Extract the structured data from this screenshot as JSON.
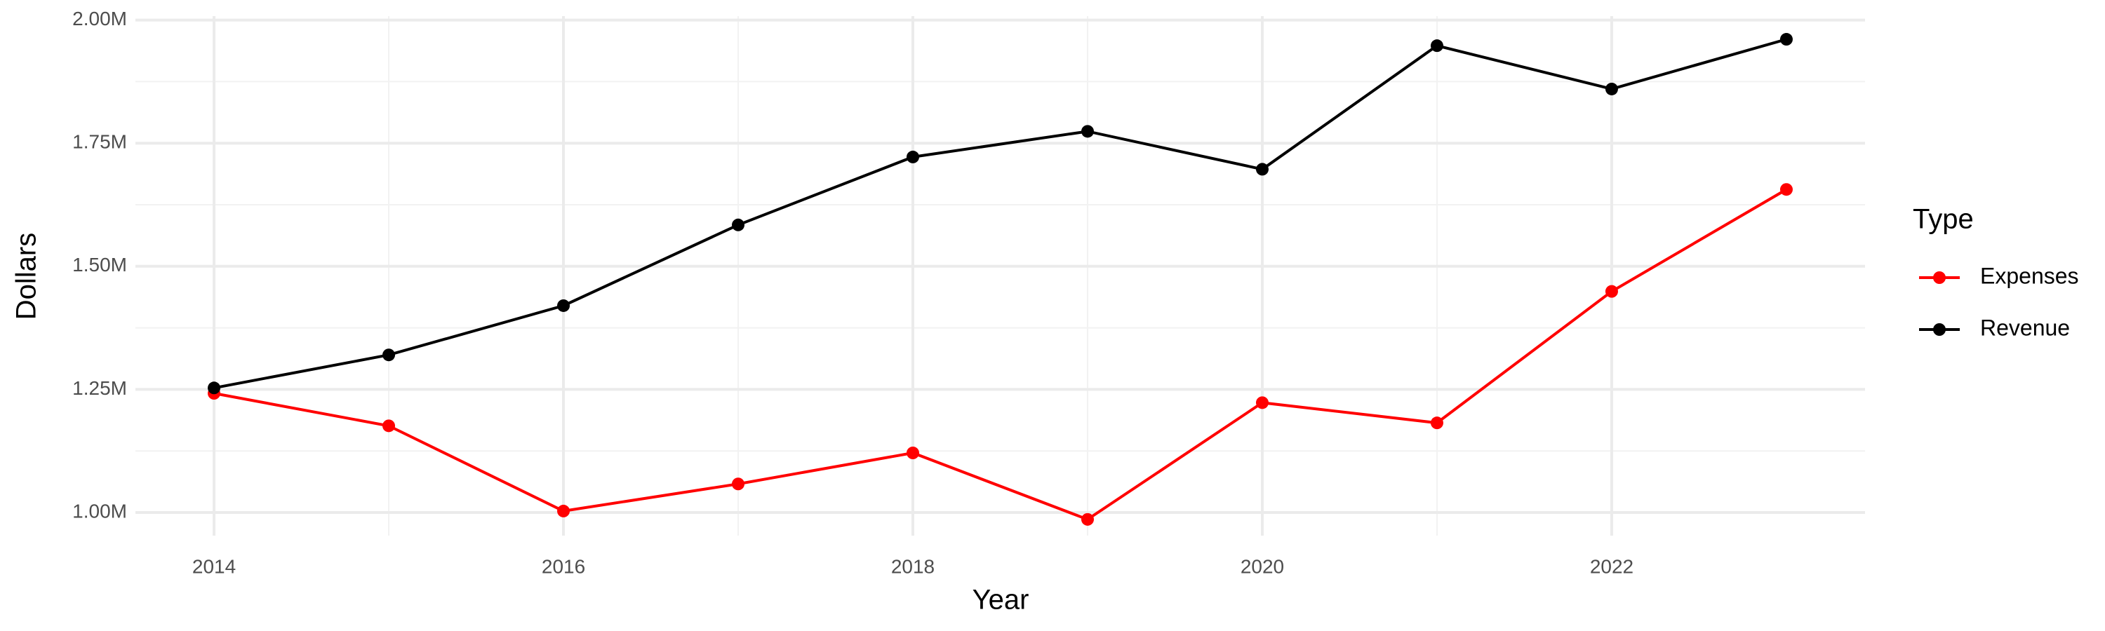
{
  "chart_data": {
    "type": "line",
    "x_label": "Year",
    "y_label": "Dollars",
    "legend_title": "Type",
    "x": [
      2014,
      2015,
      2016,
      2017,
      2018,
      2019,
      2020,
      2021,
      2022,
      2023
    ],
    "series": [
      {
        "name": "Expenses",
        "color": "#ff0000",
        "values": [
          1242000,
          1176000,
          1003000,
          1058000,
          1121000,
          986000,
          1223000,
          1182000,
          1449000,
          1656000
        ]
      },
      {
        "name": "Revenue",
        "color": "#000000",
        "values": [
          1253000,
          1320000,
          1420000,
          1584000,
          1722000,
          1774000,
          1697000,
          1948000,
          1860000,
          1961000
        ]
      }
    ],
    "xlim": [
      2013.55,
      2023.45
    ],
    "xticks": [
      2014,
      2016,
      2018,
      2020,
      2022
    ],
    "ylim": [
      953000,
      2008000
    ],
    "yticks": [
      {
        "value": 1000000,
        "label": "1.00M"
      },
      {
        "value": 1250000,
        "label": "1.25M"
      },
      {
        "value": 1500000,
        "label": "1.50M"
      },
      {
        "value": 1750000,
        "label": "1.75M"
      },
      {
        "value": 2000000,
        "label": "2.00M"
      }
    ],
    "grid": true,
    "legend_position": "right"
  }
}
